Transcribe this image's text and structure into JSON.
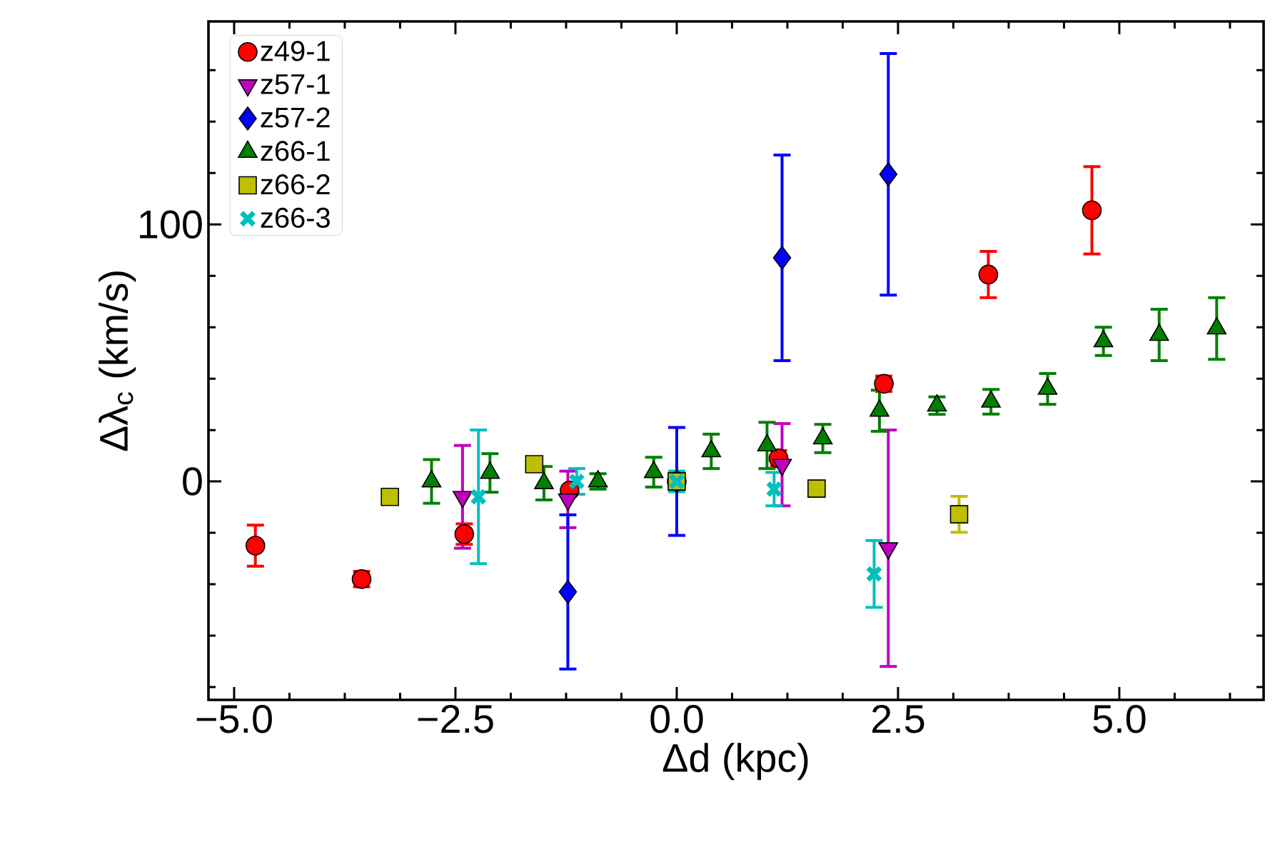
{
  "chart_data": {
    "type": "scatter",
    "xlabel": "Δd (kpc)",
    "ylabel": "Δλ$_{c}$ (km/s)",
    "xlim": [
      -5.29,
      6.63
    ],
    "ylim": [
      -85,
      179
    ],
    "xticks": [
      {
        "value": -5,
        "label": "−5.0"
      },
      {
        "value": -2.5,
        "label": "−2.5"
      },
      {
        "value": 0,
        "label": "0.0"
      },
      {
        "value": 2.5,
        "label": "2.5"
      },
      {
        "value": 5,
        "label": "5.0"
      },
      {
        "value": -4.375,
        "label": null
      },
      {
        "value": -3.75,
        "label": null
      },
      {
        "value": -3.125,
        "label": null
      },
      {
        "value": -1.875,
        "label": null
      },
      {
        "value": -1.25,
        "label": null
      },
      {
        "value": -0.625,
        "label": null
      },
      {
        "value": 0.625,
        "label": null
      },
      {
        "value": 1.25,
        "label": null
      },
      {
        "value": 1.875,
        "label": null
      },
      {
        "value": 3.125,
        "label": null
      },
      {
        "value": 3.75,
        "label": null
      },
      {
        "value": 4.375,
        "label": null
      },
      {
        "value": 5.625,
        "label": null
      },
      {
        "value": 6.25,
        "label": null
      }
    ],
    "yticks": [
      0,
      100,
      {
        "value": -80,
        "label": null
      },
      {
        "value": -60,
        "label": null
      },
      {
        "value": -40,
        "label": null
      },
      {
        "value": -20,
        "label": null
      },
      {
        "value": 20,
        "label": null
      },
      {
        "value": 40,
        "label": null
      },
      {
        "value": 60,
        "label": null
      },
      {
        "value": 80,
        "label": null
      },
      {
        "value": 120,
        "label": null
      },
      {
        "value": 140,
        "label": null
      },
      {
        "value": 160,
        "label": null
      }
    ],
    "legend": "top left",
    "series": [
      {
        "name": "z49-1",
        "color": "#ff0000",
        "marker": "circle",
        "x": [
          -4.76,
          -3.56,
          -2.4,
          -1.21,
          0,
          1.15,
          2.34,
          3.52,
          4.69
        ],
        "values": [
          -25,
          -38,
          -20.5,
          -3.5,
          0,
          9,
          38,
          80.5,
          105.5
        ],
        "errors": [
          8,
          3,
          4,
          null,
          null,
          3,
          3,
          9,
          17
        ]
      },
      {
        "name": "z57-1",
        "color": "#bf00bf",
        "marker": "triangle-down",
        "x": [
          -2.42,
          -1.23,
          0,
          1.19,
          2.39
        ],
        "values": [
          -6,
          -7,
          null,
          6.5,
          -26
        ],
        "errors": [
          20,
          11,
          null,
          16,
          46
        ]
      },
      {
        "name": "z57-2",
        "color": "#0000ff",
        "marker": "diamond",
        "x": [
          -1.23,
          0,
          1.19,
          2.39
        ],
        "values": [
          -43,
          0,
          87,
          119.5
        ],
        "errors": [
          30,
          21,
          40,
          47
        ]
      },
      {
        "name": "z66-1",
        "color": "#008000",
        "marker": "triangle",
        "x": [
          -2.77,
          -2.11,
          -1.5,
          -0.89,
          -0.26,
          0.39,
          1.02,
          1.65,
          2.29,
          2.94,
          3.55,
          4.19,
          4.82,
          5.45,
          6.1
        ],
        "values": [
          0,
          3.3,
          -0.7,
          0,
          3.6,
          11.7,
          14,
          16.7,
          27.5,
          29.5,
          31,
          36,
          54.5,
          57,
          59.5
        ],
        "errors": [
          8.5,
          7.5,
          6.5,
          3,
          5.8,
          6.7,
          9,
          5.5,
          8,
          3.4,
          4.8,
          6,
          5.5,
          10,
          12
        ]
      },
      {
        "name": "z66-2",
        "color": "#bfbf00",
        "marker": "square",
        "x": [
          -3.24,
          -1.61,
          0,
          1.58,
          3.19
        ],
        "values": [
          -6,
          6.7,
          0,
          -2.8,
          -12.8
        ],
        "errors": [
          null,
          null,
          null,
          null,
          7
        ]
      },
      {
        "name": "z66-3",
        "color": "#00bfbf",
        "marker": "cross",
        "x": [
          -2.24,
          -1.13,
          0,
          1.1,
          2.23
        ],
        "values": [
          -6,
          0,
          0,
          -3,
          -36
        ],
        "errors": [
          26,
          5,
          4,
          6.5,
          13
        ]
      }
    ]
  }
}
